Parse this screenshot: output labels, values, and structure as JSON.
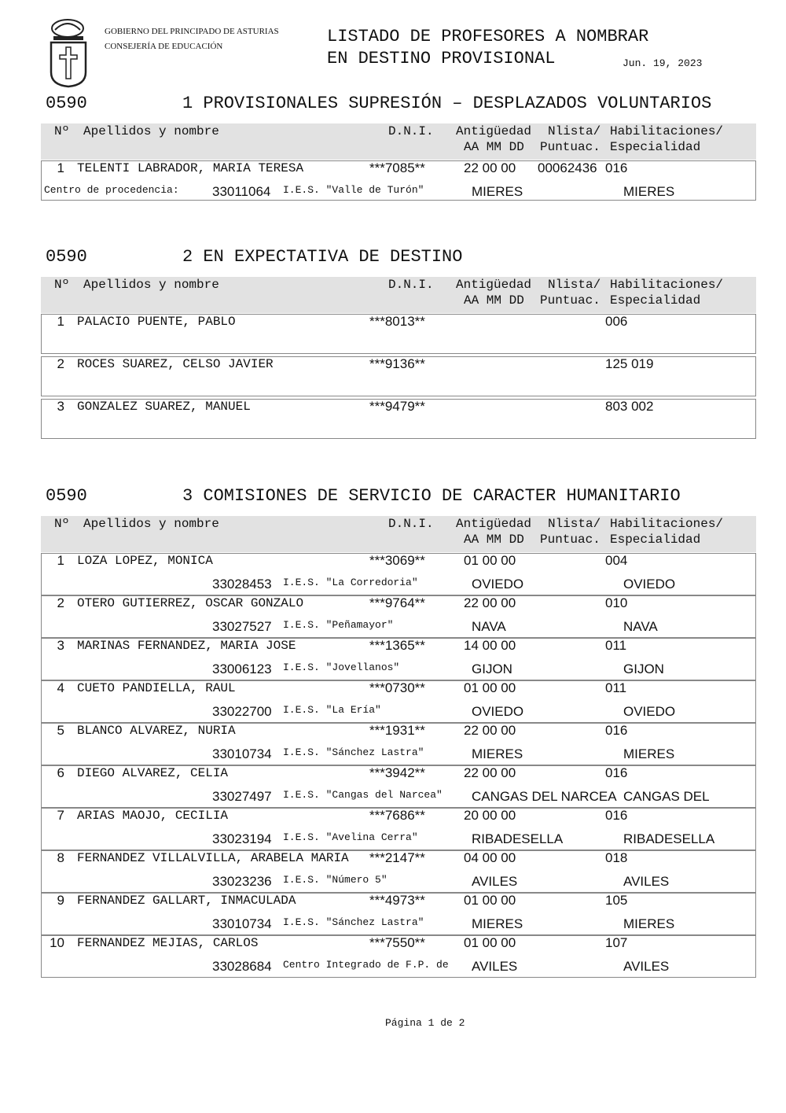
{
  "header": {
    "org_line1": "GOBIERNO DEL PRINCIPADO DE ASTURIAS",
    "org_line2": "CONSEJERÍA DE EDUCACIÓN",
    "title_line1": "LISTADO DE PROFESORES A NOMBRAR",
    "title_line2": "EN DESTINO PROVISIONAL",
    "date": "Jun. 19, 2023"
  },
  "sections": [
    {
      "code": "0590",
      "title": "1 PROVISIONALES SUPRESIÓN – DESPLAZADOS VOLUNTARIOS",
      "columns": {
        "no": "Nº",
        "name": "Apellidos y nombre",
        "dni": "D.N.I.",
        "antig": "Antigüedad",
        "nlista": "Nlista/",
        "habil": "Habilitaciones/",
        "aammdd": "AA MM DD",
        "puntuac": "Puntuac.",
        "especialidad": "Especialidad"
      },
      "rows": [
        {
          "num": "1",
          "name": "TELENTI LABRADOR, MARIA TERESA",
          "dni": "***7085**",
          "antig": "22 00 00",
          "puntuac": "00062436",
          "esp": "016",
          "label": "Centro de procedencia:",
          "center_code": "33011064",
          "center": "I.E.S. \"Valle de Turón\"",
          "loc1": "MIERES",
          "loc2": "MIERES"
        }
      ]
    },
    {
      "code": "0590",
      "title": "2 EN EXPECTATIVA DE DESTINO",
      "columns": {
        "no": "Nº",
        "name": "Apellidos y nombre",
        "dni": "D.N.I.",
        "antig": "Antigüedad",
        "nlista": "Nlista/",
        "habil": "Habilitaciones/",
        "aammdd": "AA MM DD",
        "puntuac": "Puntuac.",
        "especialidad": "Especialidad"
      },
      "rows": [
        {
          "num": "1",
          "name": "PALACIO PUENTE, PABLO",
          "dni": "***8013**",
          "esp": "006"
        },
        {
          "num": "2",
          "name": "ROCES SUAREZ, CELSO JAVIER",
          "dni": "***9136**",
          "esp": "125 019"
        },
        {
          "num": "3",
          "name": "GONZALEZ SUAREZ, MANUEL",
          "dni": "***9479**",
          "esp": "803 002"
        }
      ]
    },
    {
      "code": "0590",
      "title": "3 COMISIONES DE SERVICIO DE CARACTER HUMANITARIO",
      "columns": {
        "no": "Nº",
        "name": "Apellidos y nombre",
        "dni": "D.N.I.",
        "antig": "Antigüedad",
        "nlista": "Nlista/",
        "habil": "Habilitaciones/",
        "aammdd": "AA MM DD",
        "puntuac": "Puntuac.",
        "especialidad": "Especialidad"
      },
      "rows": [
        {
          "num": "1",
          "name": "LOZA LOPEZ, MONICA",
          "dni": "***3069**",
          "antig": "01 00 00",
          "esp": "004",
          "center_code": "33028453",
          "center": "I.E.S. \"La Corredoria\"",
          "loc1": "OVIEDO",
          "loc2": "OVIEDO"
        },
        {
          "num": "2",
          "name": "OTERO GUTIERREZ, OSCAR GONZALO",
          "dni": "***9764**",
          "antig": "22 00 00",
          "esp": "010",
          "center_code": "33027527",
          "center": "I.E.S. \"Peñamayor\"",
          "loc1": "NAVA",
          "loc2": "NAVA"
        },
        {
          "num": "3",
          "name": "MARINAS FERNANDEZ, MARIA JOSE",
          "dni": "***1365**",
          "antig": "14 00 00",
          "esp": "011",
          "center_code": "33006123",
          "center": "I.E.S. \"Jovellanos\"",
          "loc1": "GIJON",
          "loc2": "GIJON"
        },
        {
          "num": "4",
          "name": "CUETO PANDIELLA, RAUL",
          "dni": "***0730**",
          "antig": "01 00 00",
          "esp": "011",
          "center_code": "33022700",
          "center": "I.E.S. \"La Ería\"",
          "loc1": "OVIEDO",
          "loc2": "OVIEDO"
        },
        {
          "num": "5",
          "name": "BLANCO ALVAREZ, NURIA",
          "dni": "***1931**",
          "antig": "22 00 00",
          "esp": "016",
          "center_code": "33010734",
          "center": "I.E.S. \"Sánchez Lastra\"",
          "loc1": "MIERES",
          "loc2": "MIERES"
        },
        {
          "num": "6",
          "name": "DIEGO ALVAREZ, CELIA",
          "dni": "***3942**",
          "antig": "22 00 00",
          "esp": "016",
          "center_code": "33027497",
          "center": "I.E.S. \"Cangas del Narcea\"",
          "loc1": "CANGAS DEL NARCEA",
          "loc2": "CANGAS DEL"
        },
        {
          "num": "7",
          "name": "ARIAS MAOJO, CECILIA",
          "dni": "***7686**",
          "antig": "20 00 00",
          "esp": "016",
          "center_code": "33023194",
          "center": "I.E.S. \"Avelina Cerra\"",
          "loc1": "RIBADESELLA",
          "loc2": "RIBADESELLA"
        },
        {
          "num": "8",
          "name": "FERNANDEZ VILLALVILLA, ARABELA MARIA",
          "dni": "***2147**",
          "antig": "04 00 00",
          "esp": "018",
          "center_code": "33023236",
          "center": "I.E.S. \"Número 5\"",
          "loc1": "AVILES",
          "loc2": "AVILES"
        },
        {
          "num": "9",
          "name": "FERNANDEZ GALLART, INMACULADA",
          "dni": "***4973**",
          "antig": "01 00 00",
          "esp": "105",
          "center_code": "33010734",
          "center": "I.E.S. \"Sánchez Lastra\"",
          "loc1": "MIERES",
          "loc2": "MIERES"
        },
        {
          "num": "10",
          "name": "FERNANDEZ MEJIAS, CARLOS",
          "dni": "***7550**",
          "antig": "01 00 00",
          "esp": "107",
          "center_code": "33028684",
          "center": "Centro Integrado de F.P. de",
          "loc1": "AVILES",
          "loc2": "AVILES"
        }
      ]
    }
  ],
  "footer": {
    "page": "Página 1 de 2"
  }
}
